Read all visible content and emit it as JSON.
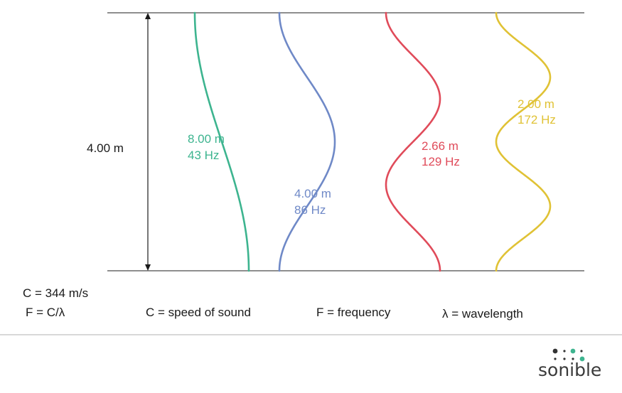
{
  "room": {
    "height_label": "4.00 m"
  },
  "colors": {
    "line": "#4a4a4a",
    "divider": "#cccccc",
    "green": "#3db48f",
    "blue": "#6f89c7",
    "red": "#e04b5a",
    "yellow": "#e0c235",
    "logo_teal": "#3db48f",
    "logo_dark": "#333333"
  },
  "modes": [
    {
      "wavelength": "8.00 m",
      "frequency": "43 Hz",
      "color": "#3db48f"
    },
    {
      "wavelength": "4.00 m",
      "frequency": "86 Hz",
      "color": "#6f89c7"
    },
    {
      "wavelength": "2.66 m",
      "frequency": "129 Hz",
      "color": "#e04b5a"
    },
    {
      "wavelength": "2.00 m",
      "frequency": "172 Hz",
      "color": "#e0c235"
    }
  ],
  "formulas": {
    "speed": "C = 344 m/s",
    "frequency_formula": "F = C/λ",
    "legend_c": "C = speed of sound",
    "legend_f": "F = frequency",
    "legend_lambda": "λ = wavelength"
  },
  "brand": {
    "logo_text": "sonible",
    "logo_icon": "dot-grid-icon"
  }
}
